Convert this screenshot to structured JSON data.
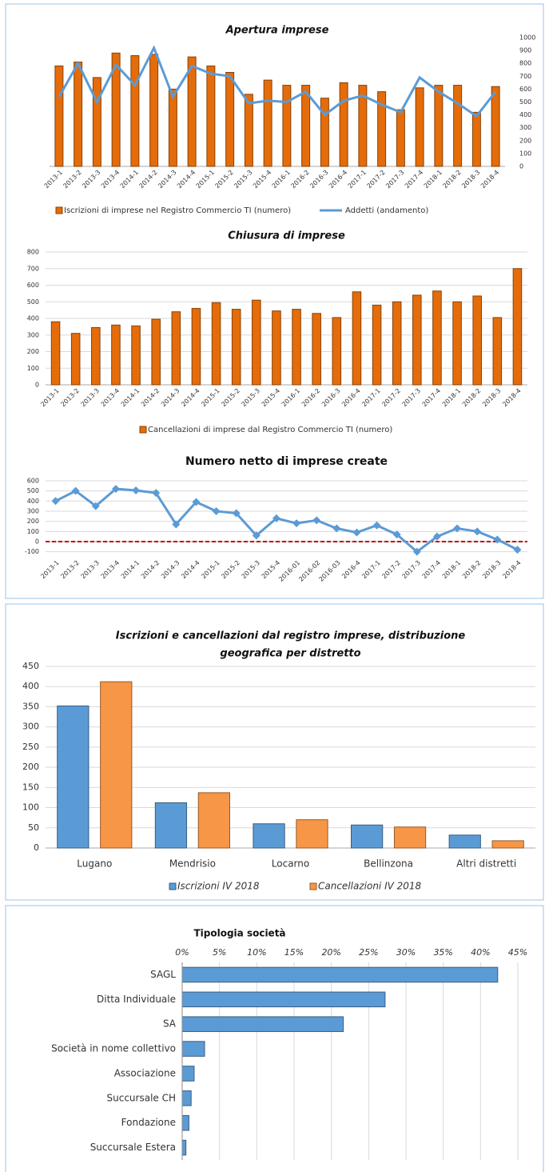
{
  "chart_data": [
    {
      "type": "combo",
      "title": "Apertura imprese",
      "categories": [
        "2013-1",
        "2013-2",
        "2013-3",
        "2013-4",
        "2014-1",
        "2014-2",
        "2014-3",
        "2014-4",
        "2015-1",
        "2015-2",
        "2015-3",
        "2015-4",
        "2016-1",
        "2016-2",
        "2016-3",
        "2016-4",
        "2017-1",
        "2017-2",
        "2017-3",
        "2017-4",
        "2018-1",
        "2018-2",
        "2018-3",
        "2018-4"
      ],
      "series": [
        {
          "name": "Iscrizioni di imprese nel Registro Commercio TI (numero)",
          "type": "bar",
          "color": "#e46c0a",
          "values": [
            780,
            810,
            690,
            880,
            860,
            870,
            600,
            850,
            780,
            730,
            560,
            670,
            630,
            630,
            530,
            650,
            630,
            580,
            440,
            610,
            630,
            630,
            420,
            620
          ]
        },
        {
          "name": "Addetti (andamento)",
          "type": "line",
          "color": "#5b9bd5",
          "values": [
            540,
            800,
            500,
            790,
            630,
            920,
            540,
            780,
            720,
            700,
            490,
            510,
            500,
            580,
            400,
            510,
            550,
            480,
            420,
            690,
            580,
            490,
            390,
            580
          ]
        }
      ],
      "ylim": [
        0,
        1000
      ],
      "yticks": [
        0,
        100,
        200,
        300,
        400,
        500,
        600,
        700,
        800,
        900,
        1000
      ],
      "axis_side": "right",
      "grid": false
    },
    {
      "type": "bar",
      "title": "Chiusura di imprese",
      "categories": [
        "2013-1",
        "2013-2",
        "2013-3",
        "2013-4",
        "2014-1",
        "2014-2",
        "2014-3",
        "2014-4",
        "2015-1",
        "2015-2",
        "2015-3",
        "2015-4",
        "2016-1",
        "2016-2",
        "2016-3",
        "2016-4",
        "2017-1",
        "2017-2",
        "2017-3",
        "2017-4",
        "2018-1",
        "2018-2",
        "2018-3",
        "2018-4"
      ],
      "series": [
        {
          "name": "Cancellazioni di imprese dal Registro Commercio TI (numero)",
          "type": "bar",
          "color": "#e46c0a",
          "values": [
            380,
            310,
            345,
            360,
            355,
            395,
            440,
            460,
            495,
            455,
            510,
            445,
            455,
            430,
            405,
            560,
            480,
            500,
            540,
            565,
            500,
            535,
            405,
            700
          ]
        }
      ],
      "ylim": [
        0,
        800
      ],
      "yticks": [
        0,
        100,
        200,
        300,
        400,
        500,
        600,
        700,
        800
      ],
      "axis_side": "left",
      "grid": true
    },
    {
      "type": "line",
      "title": "Numero netto di  imprese create",
      "categories": [
        "2013-1",
        "2013-2",
        "2013-3",
        "2013-4",
        "2014-1",
        "2014-2",
        "2014-3",
        "2014-4",
        "2015-1",
        "2015-2",
        "2015-3",
        "2015-4",
        "2016-01",
        "2016-02",
        "2016-03",
        "2016-4",
        "2017-1",
        "2017-2",
        "2017-3",
        "2017-4",
        "2018-1",
        "2018-2",
        "2018-3",
        "2018-4"
      ],
      "series": [
        {
          "type": "line",
          "color": "#5b9bd5",
          "values": [
            400,
            500,
            350,
            520,
            505,
            480,
            170,
            390,
            300,
            280,
            60,
            230,
            180,
            210,
            130,
            90,
            160,
            70,
            -100,
            50,
            130,
            100,
            20,
            -80
          ]
        }
      ],
      "ylim": [
        -150,
        650
      ],
      "yticks": [
        -100,
        0,
        100,
        200,
        300,
        400,
        500,
        600
      ],
      "axis_side": "left",
      "grid": true,
      "zero_line": true
    },
    {
      "type": "bar",
      "title": [
        "Iscrizioni e cancellazioni dal registro imprese, distribuzione",
        "geografica per distretto"
      ],
      "categories": [
        "Lugano",
        "Mendrisio",
        "Locarno",
        "Bellinzona",
        "Altri distretti"
      ],
      "series": [
        {
          "name": "Iscrizioni IV 2018",
          "type": "bar",
          "color": "#5b9bd5",
          "values": [
            352,
            112,
            60,
            57,
            32
          ]
        },
        {
          "name": "Cancellazioni IV 2018",
          "type": "bar",
          "color": "#f79646",
          "values": [
            412,
            137,
            70,
            52,
            18
          ]
        }
      ],
      "ylim": [
        0,
        450
      ],
      "yticks": [
        0,
        50,
        100,
        150,
        200,
        250,
        300,
        350,
        400,
        450
      ],
      "axis_side": "left",
      "grid": true
    },
    {
      "type": "hbar",
      "title": "Tipologia società",
      "categories": [
        "SAGL",
        "Ditta Individuale",
        "SA",
        "Società in nome collettivo",
        "Associazione",
        "Succursale CH",
        "Fondazione",
        "Succursale Estera"
      ],
      "series": [
        {
          "type": "bar",
          "color": "#5b9bd5",
          "values": [
            42.3,
            27.2,
            21.6,
            3.0,
            1.6,
            1.2,
            0.9,
            0.5
          ]
        }
      ],
      "xlim": [
        0,
        45
      ],
      "xticks": [
        {
          "value": 0,
          "label": "0%"
        },
        {
          "value": 5,
          "label": "5%"
        },
        {
          "value": 10,
          "label": "10%"
        },
        {
          "value": 15,
          "label": "15%"
        },
        {
          "value": 20,
          "label": "20%"
        },
        {
          "value": 25,
          "label": "25%"
        },
        {
          "value": 30,
          "label": "30%"
        },
        {
          "value": 35,
          "label": "35%"
        },
        {
          "value": 40,
          "label": "40%"
        },
        {
          "value": 45,
          "label": "45%"
        }
      ],
      "grid": true
    }
  ]
}
